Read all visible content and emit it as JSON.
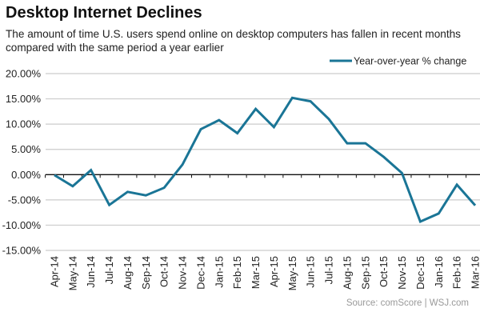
{
  "title": "Desktop Internet Declines",
  "subtitle": "The amount of time U.S. users spend online on desktop computers has fallen in recent months compared with the same period a year earlier",
  "source": "Source: comScore  |  WSJ.com",
  "colors": {
    "line": "#1a7596",
    "grid": "#cccccc",
    "axis": "#111111"
  },
  "chart_data": {
    "type": "line",
    "title": "Desktop Internet Declines",
    "xlabel": "",
    "ylabel": "",
    "ylim": [
      -15,
      20
    ],
    "yticks": [
      20,
      15,
      10,
      5,
      0,
      -5,
      -10,
      -15
    ],
    "ytick_labels": [
      "20.00%",
      "15.00%",
      "10.00%",
      "5.00%",
      "0.00%",
      "-5.00%",
      "-10.00%",
      "-15.00%"
    ],
    "grid": true,
    "legend": {
      "position": "top-right",
      "entries": [
        "Year-over-year % change"
      ]
    },
    "categories": [
      "Apr-14",
      "May-14",
      "Jun-14",
      "Jul-14",
      "Aug-14",
      "Sep-14",
      "Oct-14",
      "Nov-14",
      "Dec-14",
      "Jan-15",
      "Feb-15",
      "Mar-15",
      "Apr-15",
      "May-15",
      "Jun-15",
      "Jul-15",
      "Aug-15",
      "Sep-15",
      "Oct-15",
      "Nov-15",
      "Dec-15",
      "Jan-16",
      "Feb-16",
      "Mar-16"
    ],
    "series": [
      {
        "name": "Year-over-year % change",
        "values": [
          -0.1,
          -2.3,
          0.9,
          -6.0,
          -3.4,
          -4.1,
          -2.6,
          2.0,
          9.0,
          10.8,
          8.2,
          13.0,
          9.4,
          15.2,
          14.5,
          11.0,
          6.2,
          6.2,
          3.5,
          0.3,
          -9.3,
          -7.7,
          -2.0,
          -6.1
        ]
      }
    ]
  }
}
